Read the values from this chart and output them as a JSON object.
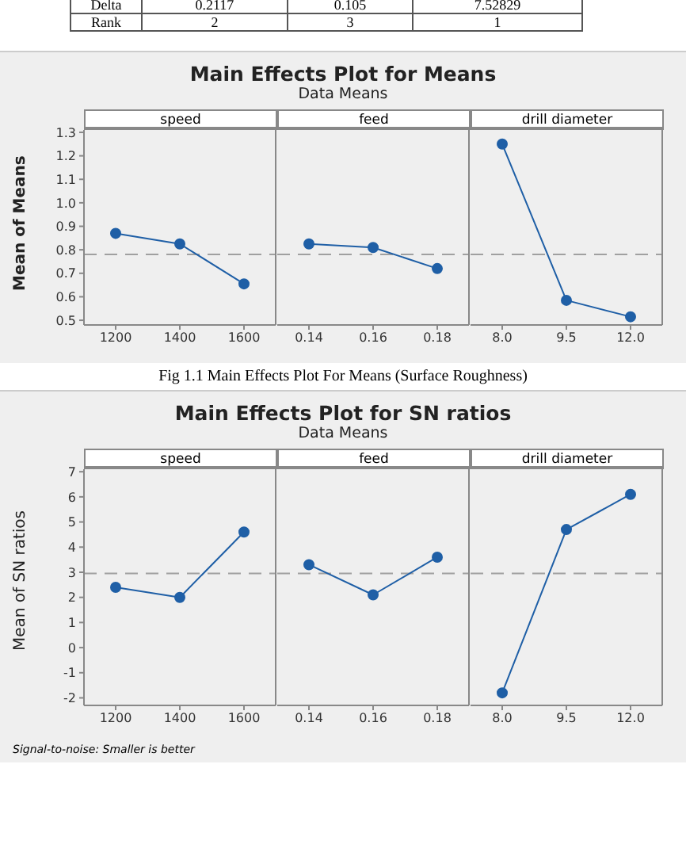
{
  "chart_data": [
    {
      "type": "other",
      "annotations": [
        "Delta",
        "0.2117",
        "0.105",
        "7.52829",
        "Rank",
        "2",
        "3",
        "1"
      ]
    },
    {
      "type": "line",
      "xlabel": "speed",
      "ylabel": "Mean of Means",
      "categories": [
        "1200",
        "1400",
        "1600"
      ],
      "series": [
        {
          "color": "#1f5fa6",
          "values": [
            0.87,
            0.825,
            0.655
          ]
        }
      ],
      "ylim": [
        0.48,
        1.31
      ],
      "yticks": [
        0.5,
        0.6,
        0.7,
        0.8,
        0.9,
        {
          "value": 1,
          "label": "1.0"
        },
        1.1,
        1.2,
        1.3
      ],
      "ref_lines": [
        {
          "axis": "y",
          "value": 0.78,
          "color": "#a0a0a0",
          "line_style": "dashed"
        }
      ],
      "marker": "circle",
      "grid": false
    },
    {
      "type": "line",
      "title": "Main Effects Plot for Means",
      "subtitle": "Data Means",
      "xlabel": "feed",
      "categories": [
        "0.14",
        "0.16",
        "0.18"
      ],
      "series": [
        {
          "color": "#1f5fa6",
          "values": [
            0.825,
            0.81,
            0.72
          ]
        }
      ],
      "ylim": [
        0.48,
        1.31
      ],
      "tick_labels": "x",
      "ref_lines": [
        {
          "axis": "y",
          "value": 0.78,
          "color": "#a0a0a0",
          "line_style": "dashed"
        }
      ],
      "marker": "circle",
      "grid": false
    },
    {
      "type": "line",
      "xlabel": "drill diameter",
      "categories": [
        "8.0",
        "9.5",
        "12.0"
      ],
      "series": [
        {
          "color": "#1f5fa6",
          "values": [
            1.25,
            0.585,
            0.515
          ]
        }
      ],
      "ylim": [
        0.48,
        1.31
      ],
      "tick_labels": "x",
      "ref_lines": [
        {
          "axis": "y",
          "value": 0.78,
          "color": "#a0a0a0",
          "line_style": "dashed"
        }
      ],
      "marker": "circle",
      "grid": false,
      "annotations": [
        "Fig 1.1 Main Effects Plot For Means (Surface Roughness)"
      ]
    },
    {
      "type": "line",
      "xlabel": "speed",
      "ylabel": "Mean of SN ratios",
      "categories": [
        "1200",
        "1400",
        "1600"
      ],
      "series": [
        {
          "color": "#1f5fa6",
          "values": [
            2.4,
            2.0,
            4.6
          ]
        }
      ],
      "ylim": [
        -2.3,
        7.1
      ],
      "yticks": [
        -2,
        -1,
        0,
        1,
        2,
        3,
        4,
        5,
        6,
        7
      ],
      "ref_lines": [
        {
          "axis": "y",
          "value": 2.95,
          "color": "#a0a0a0",
          "line_style": "dashed"
        }
      ],
      "marker": "circle",
      "grid": false,
      "annotations": [
        "Signal-to-noise: Smaller is better"
      ]
    },
    {
      "type": "line",
      "title": "Main Effects Plot for SN ratios",
      "subtitle": "Data Means",
      "xlabel": "feed",
      "categories": [
        "0.14",
        "0.16",
        "0.18"
      ],
      "series": [
        {
          "color": "#1f5fa6",
          "values": [
            3.3,
            2.1,
            3.6
          ]
        }
      ],
      "ylim": [
        -2.3,
        7.1
      ],
      "tick_labels": "x",
      "ref_lines": [
        {
          "axis": "y",
          "value": 2.95,
          "color": "#a0a0a0",
          "line_style": "dashed"
        }
      ],
      "marker": "circle",
      "grid": false
    },
    {
      "type": "line",
      "xlabel": "drill diameter",
      "categories": [
        "8.0",
        "9.5",
        "12.0"
      ],
      "series": [
        {
          "color": "#1f5fa6",
          "values": [
            -1.8,
            4.7,
            6.1
          ]
        }
      ],
      "ylim": [
        -2.3,
        7.1
      ],
      "tick_labels": "x",
      "ref_lines": [
        {
          "axis": "y",
          "value": 2.95,
          "color": "#a0a0a0",
          "line_style": "dashed"
        }
      ],
      "marker": "circle",
      "grid": false
    }
  ]
}
